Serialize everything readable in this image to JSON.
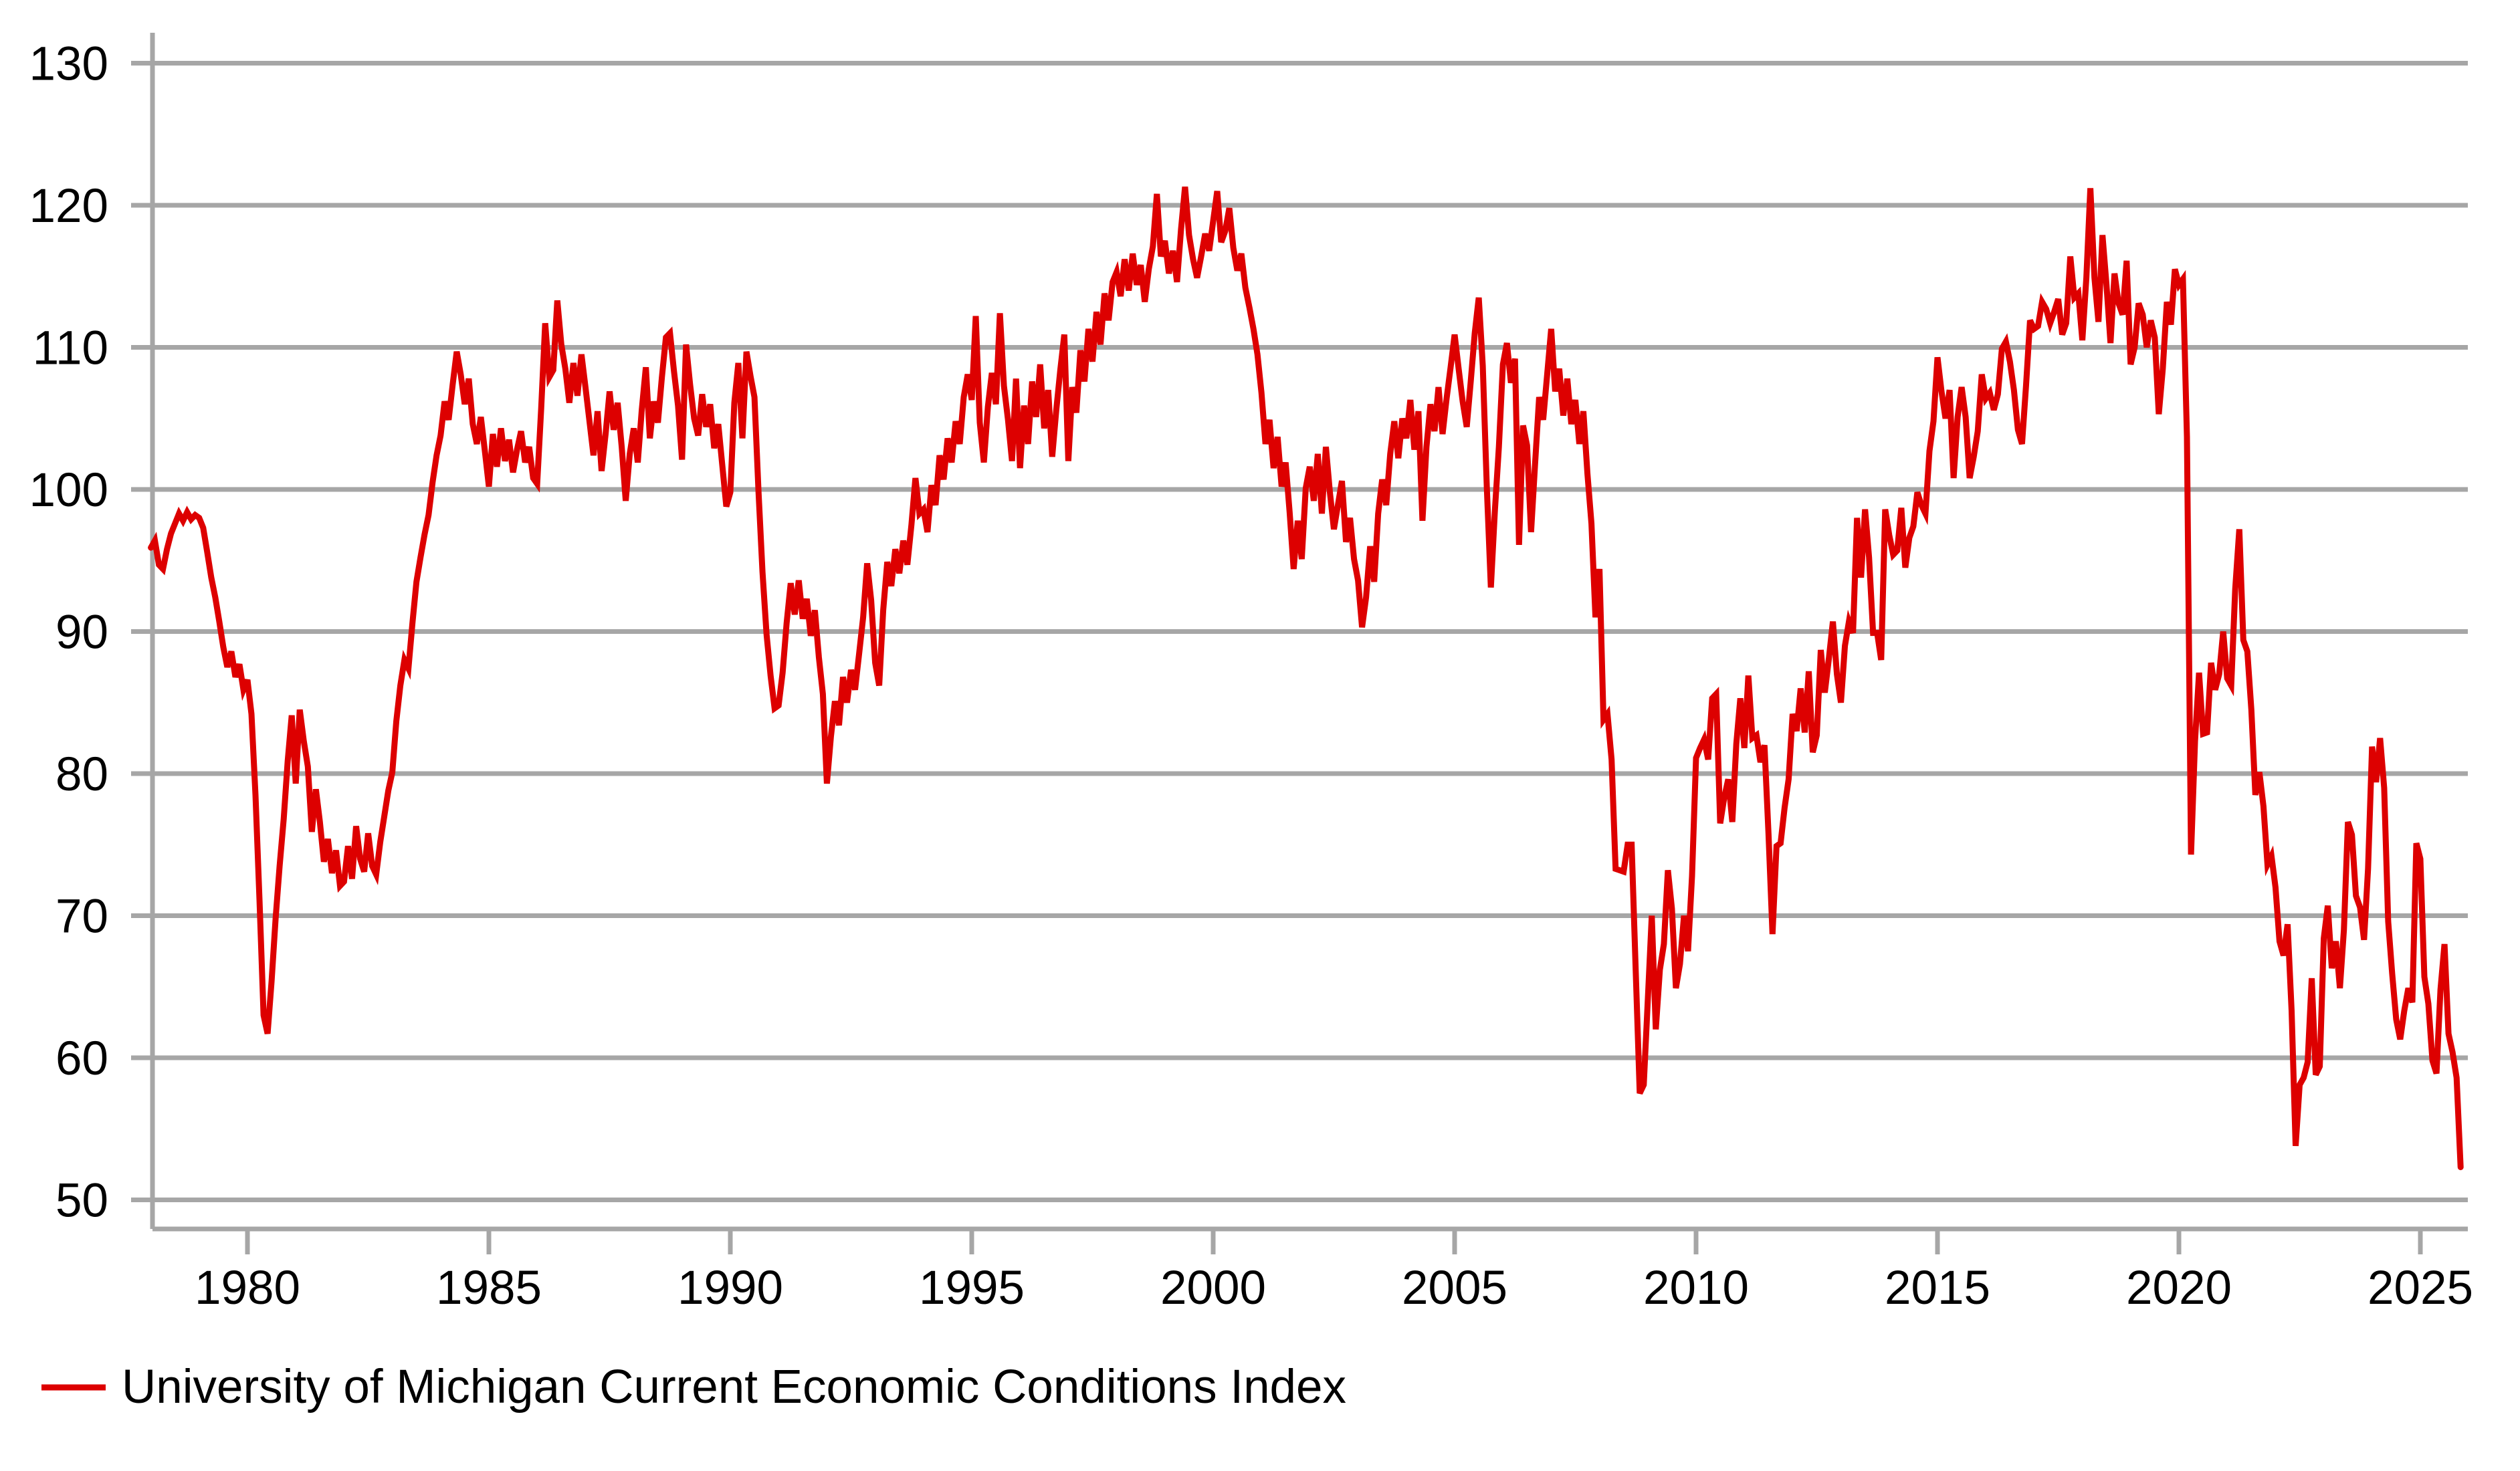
{
  "colors": {
    "background": "#ffffff",
    "series_line": "#dd0000",
    "gridline": "#a6a6a6",
    "axis": "#a6a6a6",
    "label_text": "#000000"
  },
  "legend": {
    "label": "University of Michigan Current Economic Conditions Index",
    "swatch_color": "#dd0000",
    "position": "bottom-left"
  },
  "chart_data": {
    "type": "line",
    "title": "",
    "xlabel": "",
    "ylabel": "",
    "grid": "horizontal-only",
    "legend_position": "bottom-left",
    "x_axis": {
      "tick_years": [
        1980,
        1985,
        1990,
        1995,
        2000,
        2005,
        2010,
        2015,
        2020,
        2025
      ],
      "tick_labels": [
        "1980",
        "1985",
        "1990",
        "1995",
        "2000",
        "2005",
        "2010",
        "2015",
        "2020",
        "2025"
      ],
      "range_years": [
        1978.0,
        2026.0
      ]
    },
    "y_axis": {
      "ticks": [
        50,
        60,
        70,
        80,
        90,
        100,
        110,
        120,
        130
      ],
      "tick_labels": [
        "50",
        "60",
        "70",
        "80",
        "90",
        "100",
        "110",
        "120",
        "130"
      ],
      "range": [
        50,
        130
      ]
    },
    "series": [
      {
        "name": "University of Michigan Current Economic Conditions Index",
        "color": "#dd0000",
        "frequency": "monthly",
        "start": "1978-01",
        "end": "2025-11",
        "start_year": 1978,
        "start_month": 1,
        "values": [
          95.9,
          96.4,
          94.7,
          94.4,
          95.8,
          96.9,
          97.6,
          98.3,
          97.8,
          98.4,
          97.9,
          98.2,
          98.0,
          97.3,
          95.6,
          93.8,
          92.4,
          90.7,
          88.9,
          87.5,
          88.6,
          86.8,
          87.7,
          85.9,
          86.6,
          84.2,
          78.5,
          71.0,
          63.0,
          61.7,
          65.4,
          69.8,
          73.5,
          76.8,
          80.9,
          84.1,
          79.3,
          84.5,
          82.3,
          80.5,
          75.9,
          78.9,
          76.6,
          73.8,
          75.4,
          73.0,
          74.6,
          72.1,
          72.4,
          74.9,
          72.6,
          76.3,
          74.0,
          73.1,
          75.8,
          73.5,
          72.9,
          75.2,
          77.0,
          78.8,
          80.1,
          83.7,
          86.2,
          88.0,
          87.4,
          90.6,
          93.5,
          95.2,
          96.8,
          98.2,
          100.5,
          102.4,
          103.8,
          106.2,
          104.9,
          107.4,
          109.7,
          108.1,
          106.0,
          107.8,
          104.6,
          103.2,
          105.1,
          102.7,
          100.2,
          103.9,
          101.6,
          104.3,
          102.0,
          103.5,
          101.2,
          102.8,
          104.1,
          101.9,
          103.0,
          100.8,
          100.4,
          105.7,
          111.7,
          107.9,
          108.4,
          113.3,
          110.2,
          108.5,
          106.1,
          108.9,
          106.6,
          109.5,
          107.2,
          104.8,
          102.4,
          105.5,
          101.3,
          103.9,
          106.9,
          104.2,
          106.1,
          103.0,
          99.2,
          102.5,
          104.3,
          101.9,
          105.6,
          108.6,
          103.6,
          106.2,
          104.7,
          107.9,
          110.7,
          111.0,
          108.3,
          105.9,
          102.1,
          110.2,
          107.4,
          105.0,
          103.8,
          106.7,
          104.4,
          106.0,
          102.9,
          104.6,
          101.7,
          98.8,
          99.8,
          106.1,
          108.9,
          103.6,
          109.7,
          108.0,
          106.5,
          99.9,
          94.2,
          89.8,
          86.9,
          84.6,
          84.8,
          87.1,
          90.6,
          93.4,
          91.2,
          93.6,
          90.9,
          92.3,
          89.7,
          91.5,
          88.2,
          85.6,
          79.3,
          82.6,
          85.1,
          83.4,
          86.8,
          85.0,
          87.3,
          85.9,
          88.4,
          91.0,
          94.8,
          92.2,
          87.8,
          86.2,
          91.5,
          94.9,
          93.2,
          95.8,
          94.1,
          96.4,
          94.7,
          97.5,
          100.8,
          98.3,
          98.6,
          97.0,
          100.3,
          98.9,
          102.4,
          100.7,
          103.6,
          101.9,
          104.8,
          103.2,
          106.5,
          108.1,
          106.3,
          112.2,
          104.7,
          101.9,
          105.8,
          108.2,
          106.0,
          112.4,
          107.3,
          104.9,
          102.0,
          107.8,
          101.5,
          105.9,
          103.2,
          107.6,
          105.1,
          108.8,
          104.3,
          107.0,
          102.3,
          105.6,
          108.4,
          110.9,
          102.0,
          107.2,
          105.4,
          109.8,
          107.6,
          111.3,
          109.0,
          112.5,
          110.2,
          113.8,
          111.9,
          114.6,
          115.3,
          113.6,
          116.2,
          114.0,
          116.6,
          114.4,
          115.8,
          113.2,
          115.5,
          117.1,
          120.8,
          116.4,
          117.5,
          115.2,
          116.8,
          114.6,
          118.3,
          121.3,
          117.9,
          116.2,
          114.9,
          116.4,
          118.0,
          116.8,
          118.9,
          121.0,
          117.4,
          118.2,
          119.8,
          117.0,
          115.4,
          116.6,
          114.2,
          112.8,
          111.3,
          109.5,
          106.8,
          103.2,
          104.9,
          101.5,
          103.7,
          100.2,
          101.9,
          98.4,
          94.4,
          97.8,
          95.1,
          100.1,
          101.6,
          99.2,
          102.5,
          98.3,
          103.0,
          99.8,
          97.2,
          98.9,
          100.6,
          96.3,
          98.0,
          95.1,
          93.6,
          90.3,
          92.4,
          96.0,
          93.5,
          98.3,
          100.7,
          98.9,
          102.5,
          104.8,
          102.2,
          105.0,
          103.6,
          106.3,
          102.8,
          105.5,
          97.8,
          103.0,
          106.0,
          104.1,
          107.2,
          103.9,
          106.4,
          108.6,
          110.9,
          108.5,
          106.2,
          104.4,
          107.6,
          111.0,
          113.5,
          108.7,
          100.2,
          93.1,
          98.5,
          103.0,
          108.8,
          110.3,
          107.5,
          109.2,
          96.1,
          104.5,
          103.1,
          97.0,
          101.8,
          106.5,
          104.9,
          108.1,
          111.3,
          106.9,
          108.5,
          105.2,
          107.8,
          104.6,
          106.3,
          103.2,
          105.5,
          101.1,
          97.6,
          91.0,
          94.4,
          83.8,
          84.2,
          81.0,
          73.3,
          73.2,
          73.1,
          75.0,
          75.0,
          66.1,
          57.5,
          58.1,
          64.0,
          70.0,
          62.0,
          66.2,
          68.0,
          73.2,
          70.5,
          64.9,
          66.6,
          70.0,
          67.5,
          72.8,
          81.1,
          81.8,
          82.4,
          81.0,
          85.3,
          85.6,
          76.5,
          78.3,
          79.6,
          76.6,
          82.1,
          85.3,
          81.8,
          86.9,
          82.5,
          82.7,
          80.8,
          82.0,
          75.8,
          68.7,
          74.9,
          75.1,
          77.6,
          79.6,
          84.2,
          83.0,
          86.0,
          82.9,
          87.2,
          81.5,
          82.7,
          88.7,
          85.7,
          88.1,
          90.7,
          87.0,
          85.0,
          89.0,
          90.7,
          89.9,
          98.0,
          93.8,
          98.6,
          95.2,
          89.9,
          89.9,
          88.0,
          98.6,
          96.8,
          95.4,
          95.7,
          98.7,
          94.5,
          96.6,
          97.4,
          99.8,
          98.9,
          98.3,
          102.7,
          104.8,
          109.3,
          106.9,
          105.0,
          107.0,
          100.8,
          105.1,
          107.2,
          105.1,
          100.8,
          102.3,
          104.1,
          108.1,
          106.4,
          106.8,
          105.6,
          106.7,
          109.9,
          110.4,
          109.0,
          107.0,
          104.2,
          103.2,
          107.3,
          111.9,
          111.3,
          111.5,
          113.2,
          112.7,
          111.7,
          112.5,
          113.4,
          110.9,
          111.7,
          116.4,
          113.5,
          113.8,
          110.5,
          114.9,
          121.2,
          114.9,
          111.8,
          117.9,
          114.4,
          110.3,
          115.2,
          113.1,
          112.3,
          116.1,
          108.8,
          110.0,
          113.1,
          112.3,
          110.0,
          111.9,
          110.7,
          105.3,
          108.5,
          113.2,
          111.6,
          115.5,
          114.4,
          114.8,
          103.7,
          74.3,
          82.3,
          87.1,
          82.8,
          82.9,
          87.8,
          85.9,
          87.0,
          90.0,
          86.7,
          86.2,
          93.0,
          97.2,
          89.4,
          88.6,
          84.5,
          78.5,
          80.1,
          77.7,
          73.6,
          74.2,
          72.0,
          68.2,
          67.2,
          69.4,
          63.3,
          53.8,
          58.1,
          58.6,
          59.7,
          65.6,
          58.8,
          59.4,
          68.4,
          70.7,
          66.3,
          68.2,
          64.9,
          69.0,
          76.6,
          75.7,
          71.4,
          70.6,
          68.3,
          73.3,
          81.9,
          79.4,
          82.5,
          79.0,
          69.6,
          65.9,
          62.7,
          61.3,
          63.3,
          64.9,
          63.9,
          75.1,
          74.0,
          65.7,
          63.8,
          59.8,
          58.9,
          64.8,
          68.0,
          61.7,
          60.4,
          58.6,
          52.3
        ]
      }
    ]
  }
}
